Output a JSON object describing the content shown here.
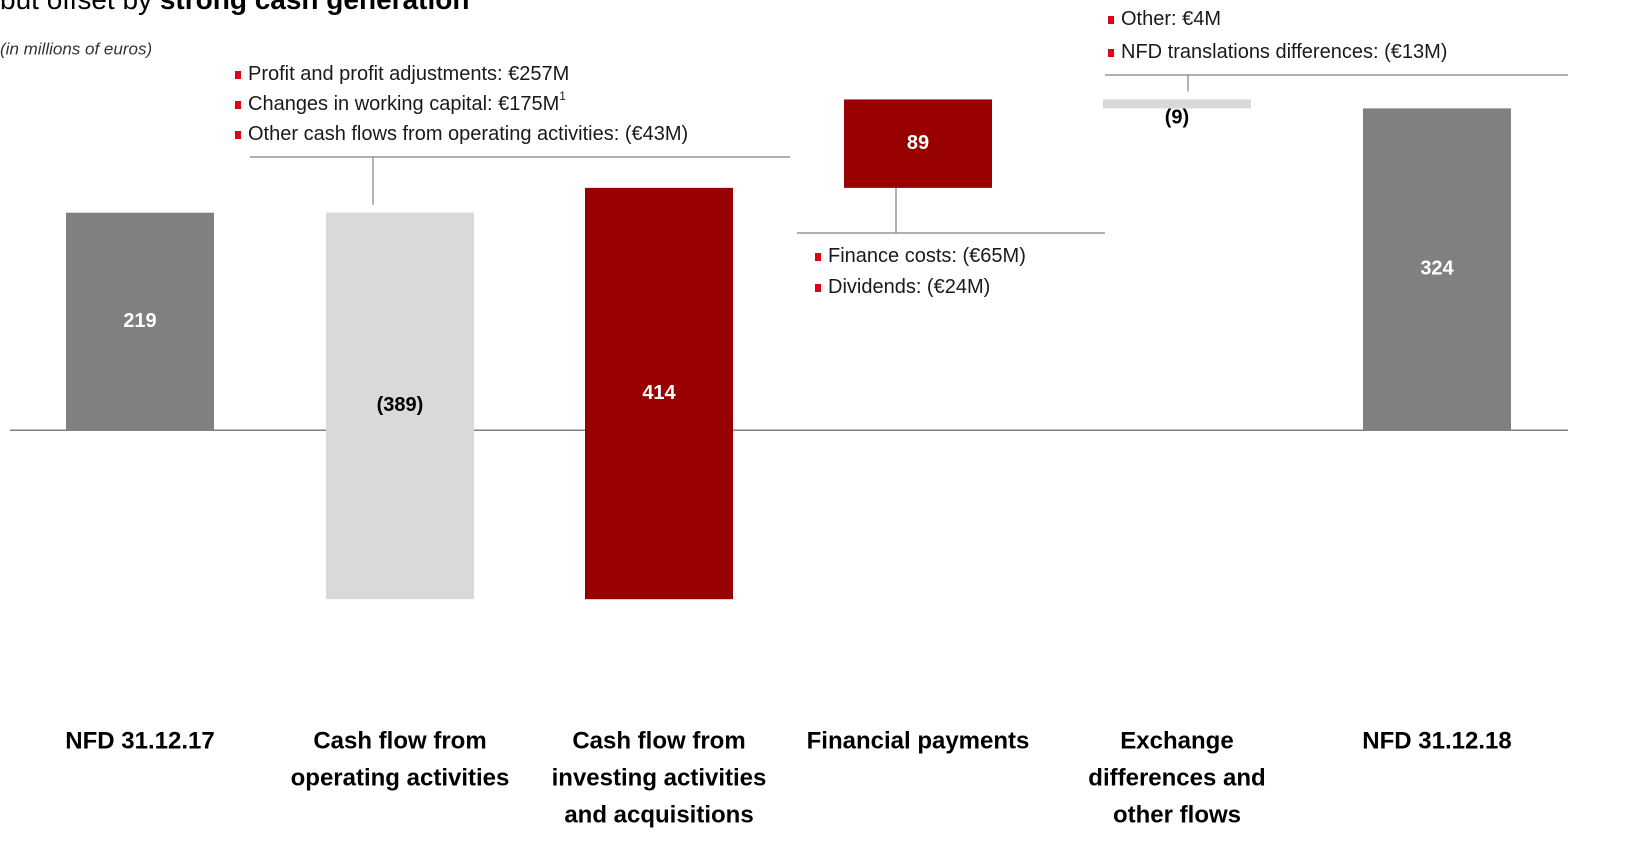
{
  "chart_data": {
    "type": "waterfall",
    "title": [
      "but offset by",
      "strong cash generation"
    ],
    "subtitle": "(in millions of euros)",
    "categories": [
      [
        "NFD 31.12.17"
      ],
      [
        "Cash flow from",
        "operating activities"
      ],
      [
        "Cash flow from",
        "investing activities",
        "and acquisitions"
      ],
      [
        "Financial payments"
      ],
      [
        "Exchange",
        "differences and",
        "other flows"
      ],
      [
        "NFD 31.12.18"
      ]
    ],
    "values": [
      219,
      -389,
      414,
      89,
      -9,
      324
    ],
    "value_labels": [
      "219",
      "(389)",
      "414",
      "89",
      "(9)",
      "324"
    ],
    "is_total": [
      true,
      false,
      false,
      false,
      false,
      true
    ],
    "colors": {
      "total": "#808080",
      "decrease": "#d9d9d9",
      "increase": "#990000"
    },
    "ylim": [
      -200,
      420
    ],
    "annotations": [
      {
        "bar": 1,
        "items": [
          "Profit and profit adjustments: €257M",
          "Changes in working capital: €175M",
          "Other cash flows from operating activities: (€43M)"
        ],
        "footnote": {
          "item": 1,
          "mark": "1"
        }
      },
      {
        "bar": 3,
        "items": [
          "Finance costs: (€65M)",
          "Dividends: (€24M)"
        ]
      },
      {
        "bar": 4,
        "items": [
          "Other: €4M",
          "NFD translations differences: (€13M)"
        ]
      }
    ]
  }
}
